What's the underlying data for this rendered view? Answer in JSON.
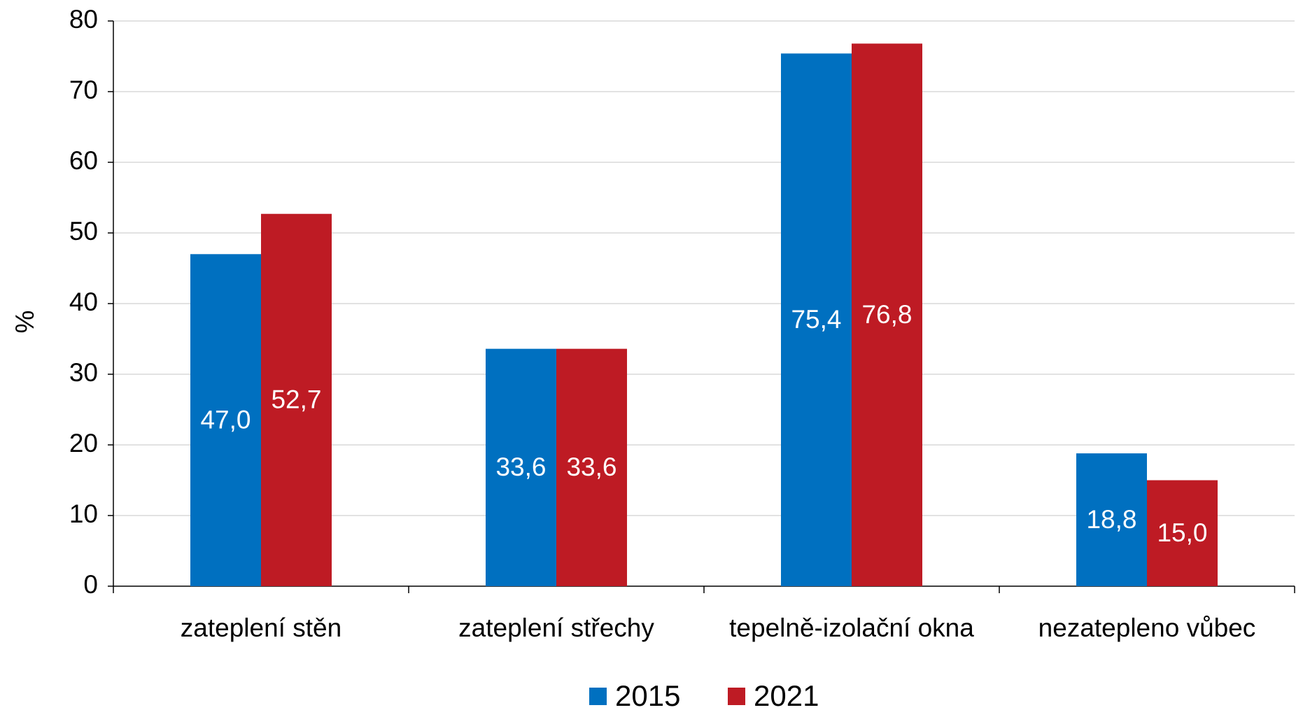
{
  "chart_data": {
    "type": "bar",
    "y_label": "%",
    "categories": [
      "zateplení stěn",
      "zateplení střechy",
      "tepelně-izolační okna",
      "nezatepleno vůbec"
    ],
    "series": [
      {
        "name": "2015",
        "color": "#0070c0",
        "values": [
          47.0,
          33.6,
          75.4,
          18.8
        ],
        "value_labels": [
          "47,0",
          "33,6",
          "75,4",
          "18,8"
        ]
      },
      {
        "name": "2021",
        "color": "#be1b24",
        "values": [
          52.7,
          33.6,
          76.8,
          15.0
        ],
        "value_labels": [
          "52,7",
          "33,6",
          "76,8",
          "15,0"
        ]
      }
    ],
    "ylim": [
      0,
      80
    ],
    "yticks": [
      0,
      10,
      20,
      30,
      40,
      50,
      60,
      70,
      80
    ],
    "grid": true,
    "legend": "bottom"
  }
}
